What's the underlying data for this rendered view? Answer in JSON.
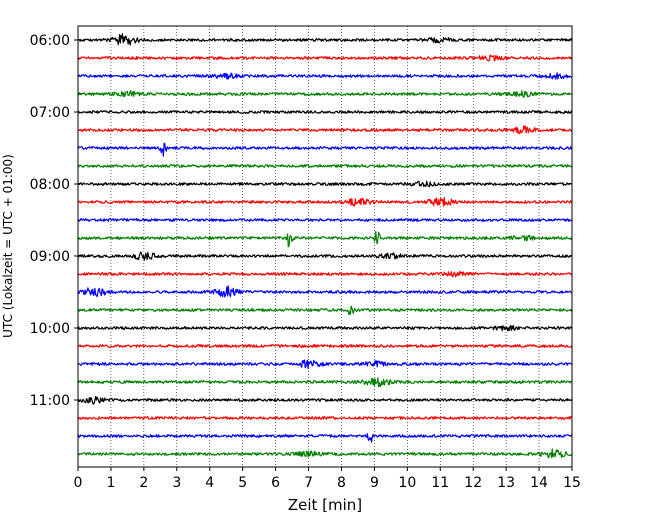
{
  "chart_data": {
    "type": "line",
    "subtype": "helicorder",
    "title": "",
    "xlabel": "Zeit  [min]",
    "ylabel": "UTC (Lokalzeit = UTC + 01:00)",
    "xlim": [
      0,
      15
    ],
    "x_ticks": [
      0,
      1,
      2,
      3,
      4,
      5,
      6,
      7,
      8,
      9,
      10,
      11,
      12,
      13,
      14,
      15
    ],
    "y_tick_labels": [
      "06:00",
      "07:00",
      "08:00",
      "09:00",
      "10:00",
      "11:00"
    ],
    "trace_interval_min": 15,
    "start_time": "06:00",
    "end_time": "12:00",
    "grid": "vertical dotted lines at each minute",
    "colors": [
      "#000000",
      "#ff0000",
      "#0000ff",
      "#008000"
    ],
    "traces": [
      {
        "start": "06:00",
        "color": "#000000",
        "events": [
          {
            "t": 1.4,
            "amp": 5
          },
          {
            "t": 11.0,
            "amp": 2
          }
        ]
      },
      {
        "start": "06:15",
        "color": "#ff0000",
        "events": [
          {
            "t": 12.5,
            "amp": 2
          }
        ]
      },
      {
        "start": "06:30",
        "color": "#0000ff",
        "events": [
          {
            "t": 4.5,
            "amp": 2
          },
          {
            "t": 14.5,
            "amp": 2
          }
        ]
      },
      {
        "start": "06:45",
        "color": "#008000",
        "events": [
          {
            "t": 1.5,
            "amp": 2
          },
          {
            "t": 13.5,
            "amp": 2
          }
        ]
      },
      {
        "start": "07:00",
        "color": "#000000",
        "events": []
      },
      {
        "start": "07:15",
        "color": "#ff0000",
        "events": [
          {
            "t": 13.5,
            "amp": 3
          }
        ]
      },
      {
        "start": "07:30",
        "color": "#0000ff",
        "events": [
          {
            "t": 2.6,
            "amp": 8
          }
        ]
      },
      {
        "start": "07:45",
        "color": "#008000",
        "events": []
      },
      {
        "start": "08:00",
        "color": "#000000",
        "events": [
          {
            "t": 10.5,
            "amp": 2
          }
        ]
      },
      {
        "start": "08:15",
        "color": "#ff0000",
        "events": [
          {
            "t": 8.5,
            "amp": 3
          },
          {
            "t": 11.0,
            "amp": 4
          }
        ]
      },
      {
        "start": "08:30",
        "color": "#0000ff",
        "events": []
      },
      {
        "start": "08:45",
        "color": "#008000",
        "events": [
          {
            "t": 6.4,
            "amp": 10
          },
          {
            "t": 9.1,
            "amp": 8
          },
          {
            "t": 13.5,
            "amp": 2
          }
        ]
      },
      {
        "start": "09:00",
        "color": "#000000",
        "events": [
          {
            "t": 2.0,
            "amp": 3
          },
          {
            "t": 9.5,
            "amp": 2
          }
        ]
      },
      {
        "start": "09:15",
        "color": "#ff0000",
        "events": [
          {
            "t": 11.5,
            "amp": 2
          }
        ]
      },
      {
        "start": "09:30",
        "color": "#0000ff",
        "events": [
          {
            "t": 0.5,
            "amp": 4
          },
          {
            "t": 4.5,
            "amp": 5
          }
        ]
      },
      {
        "start": "09:45",
        "color": "#008000",
        "events": [
          {
            "t": 8.3,
            "amp": 7
          }
        ]
      },
      {
        "start": "10:00",
        "color": "#000000",
        "events": [
          {
            "t": 13.0,
            "amp": 2
          }
        ]
      },
      {
        "start": "10:15",
        "color": "#ff0000",
        "events": []
      },
      {
        "start": "10:30",
        "color": "#0000ff",
        "events": [
          {
            "t": 7.0,
            "amp": 3
          },
          {
            "t": 9.0,
            "amp": 2
          }
        ]
      },
      {
        "start": "10:45",
        "color": "#008000",
        "events": [
          {
            "t": 9.1,
            "amp": 4
          }
        ]
      },
      {
        "start": "11:00",
        "color": "#000000",
        "events": [
          {
            "t": 0.5,
            "amp": 3
          }
        ]
      },
      {
        "start": "11:15",
        "color": "#ff0000",
        "events": []
      },
      {
        "start": "11:30",
        "color": "#0000ff",
        "events": [
          {
            "t": 8.9,
            "amp": 6
          }
        ]
      },
      {
        "start": "11:45",
        "color": "#008000",
        "events": [
          {
            "t": 7.0,
            "amp": 2
          },
          {
            "t": 14.4,
            "amp": 4
          }
        ]
      }
    ]
  }
}
